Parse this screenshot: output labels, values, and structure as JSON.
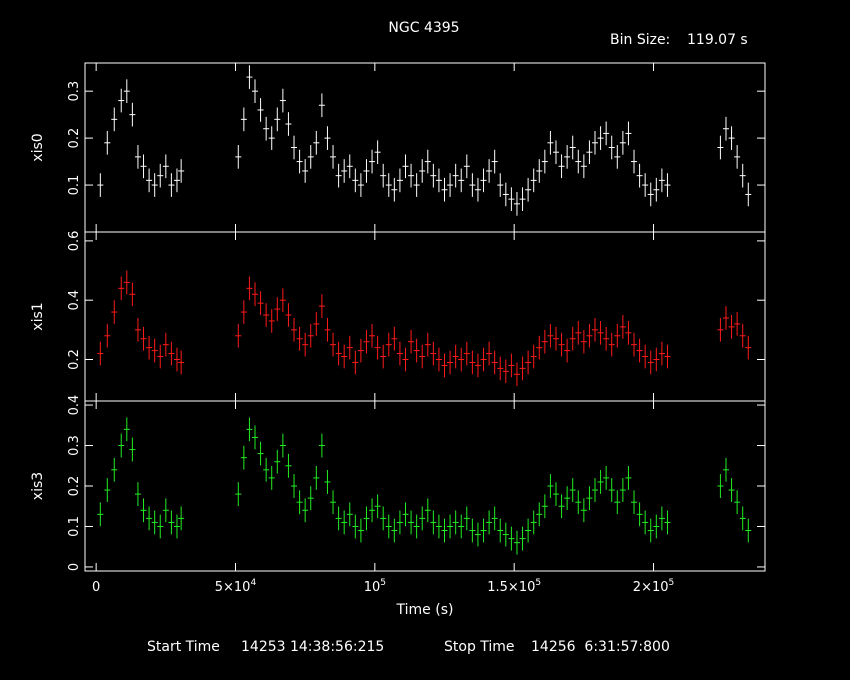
{
  "chart_data": {
    "type": "line",
    "title": "NGC 4395",
    "bin_size_label": "Bin Size:",
    "bin_size_value": "119.07 s",
    "xlabel": "Time (s)",
    "x_range": [
      -4000,
      240000
    ],
    "x_ticks": [
      {
        "value": 0,
        "label": "0"
      },
      {
        "value": 50000,
        "label": "5×10",
        "exp": "4"
      },
      {
        "value": 100000,
        "label": "10",
        "exp": "5"
      },
      {
        "value": 150000,
        "label": "1.5×10",
        "exp": "5"
      },
      {
        "value": 200000,
        "label": "2×10",
        "exp": "5"
      }
    ],
    "start_time_label": "Start Time",
    "start_time_value": "14253 14:38:56:215",
    "stop_time_label": "Stop Time",
    "stop_time_value": "14256  6:31:57:800",
    "panels": [
      {
        "name": "xis0",
        "color": "#ffffff",
        "ylim": [
          0.0,
          0.36
        ],
        "ytick_values": [
          0.1,
          0.2,
          0.3
        ],
        "ytick_labels": [
          "0.1",
          "0.2",
          "0.3"
        ],
        "segments": [
          {
            "x": [
              1500,
              4000,
              6500,
              9000,
              11000,
              13000,
              15000,
              17000,
              19000,
              21000,
              23000,
              25000,
              27000,
              29000,
              30500
            ],
            "y": [
              0.1,
              0.19,
              0.24,
              0.28,
              0.3,
              0.25,
              0.16,
              0.14,
              0.11,
              0.1,
              0.12,
              0.14,
              0.1,
              0.11,
              0.13
            ]
          },
          {
            "x": [
              51000,
              53000,
              55000,
              57000,
              59000,
              61000,
              63000,
              65000,
              67000,
              69000,
              71000,
              73000,
              75000,
              77000,
              79000,
              81000,
              83000,
              85000,
              87000,
              89000,
              91000,
              93000,
              95000,
              97000,
              99000,
              101000,
              103000,
              105000,
              107000,
              109000,
              111000,
              113000,
              115000,
              117000,
              119000,
              121000,
              123000,
              125000,
              127000,
              129000,
              131000,
              133000,
              135000,
              137000,
              139000,
              141000,
              143000,
              145000,
              147000,
              149000,
              151000,
              153000,
              155000,
              157000,
              159000,
              161000,
              163000,
              165000,
              167000,
              169000,
              171000,
              173000,
              175000,
              177000,
              179000,
              181000,
              183000,
              185000,
              187000,
              189000,
              191000,
              193000,
              195000,
              197000,
              199000,
              201000,
              203000,
              205000
            ],
            "y": [
              0.16,
              0.24,
              0.33,
              0.3,
              0.26,
              0.22,
              0.2,
              0.24,
              0.28,
              0.23,
              0.18,
              0.15,
              0.13,
              0.16,
              0.19,
              0.27,
              0.2,
              0.16,
              0.12,
              0.13,
              0.14,
              0.11,
              0.1,
              0.13,
              0.15,
              0.17,
              0.12,
              0.1,
              0.09,
              0.11,
              0.14,
              0.12,
              0.1,
              0.13,
              0.15,
              0.12,
              0.11,
              0.09,
              0.1,
              0.12,
              0.11,
              0.14,
              0.1,
              0.09,
              0.11,
              0.13,
              0.15,
              0.1,
              0.08,
              0.07,
              0.06,
              0.07,
              0.09,
              0.11,
              0.13,
              0.15,
              0.19,
              0.17,
              0.14,
              0.16,
              0.18,
              0.15,
              0.14,
              0.17,
              0.19,
              0.2,
              0.21,
              0.18,
              0.16,
              0.19,
              0.21,
              0.15,
              0.12,
              0.1,
              0.08,
              0.09,
              0.11,
              0.1
            ]
          },
          {
            "x": [
              224000,
              226000,
              228000,
              230000,
              232000,
              234000
            ],
            "y": [
              0.18,
              0.22,
              0.2,
              0.16,
              0.12,
              0.08
            ]
          }
        ]
      },
      {
        "name": "xis1",
        "color": "#ff1a1a",
        "ylim": [
          0.06,
          0.63
        ],
        "ytick_values": [
          0.2,
          0.4,
          0.6
        ],
        "ytick_labels": [
          "0.2",
          "0.4",
          "0.6"
        ],
        "segments": [
          {
            "x": [
              1500,
              4000,
              6500,
              9000,
              11000,
              13000,
              15000,
              17000,
              19000,
              21000,
              23000,
              25000,
              27000,
              29000,
              30500
            ],
            "y": [
              0.22,
              0.28,
              0.36,
              0.44,
              0.46,
              0.42,
              0.3,
              0.27,
              0.24,
              0.23,
              0.21,
              0.25,
              0.22,
              0.2,
              0.19
            ]
          },
          {
            "x": [
              51000,
              53000,
              55000,
              57000,
              59000,
              61000,
              63000,
              65000,
              67000,
              69000,
              71000,
              73000,
              75000,
              77000,
              79000,
              81000,
              83000,
              85000,
              87000,
              89000,
              91000,
              93000,
              95000,
              97000,
              99000,
              101000,
              103000,
              105000,
              107000,
              109000,
              111000,
              113000,
              115000,
              117000,
              119000,
              121000,
              123000,
              125000,
              127000,
              129000,
              131000,
              133000,
              135000,
              137000,
              139000,
              141000,
              143000,
              145000,
              147000,
              149000,
              151000,
              153000,
              155000,
              157000,
              159000,
              161000,
              163000,
              165000,
              167000,
              169000,
              171000,
              173000,
              175000,
              177000,
              179000,
              181000,
              183000,
              185000,
              187000,
              189000,
              191000,
              193000,
              195000,
              197000,
              199000,
              201000,
              203000,
              205000
            ],
            "y": [
              0.28,
              0.36,
              0.44,
              0.42,
              0.39,
              0.35,
              0.33,
              0.37,
              0.4,
              0.35,
              0.3,
              0.27,
              0.25,
              0.28,
              0.32,
              0.38,
              0.3,
              0.25,
              0.22,
              0.21,
              0.24,
              0.19,
              0.23,
              0.26,
              0.28,
              0.24,
              0.21,
              0.25,
              0.27,
              0.22,
              0.2,
              0.26,
              0.23,
              0.21,
              0.25,
              0.22,
              0.2,
              0.18,
              0.19,
              0.21,
              0.2,
              0.22,
              0.19,
              0.18,
              0.2,
              0.22,
              0.19,
              0.17,
              0.16,
              0.18,
              0.15,
              0.17,
              0.19,
              0.21,
              0.24,
              0.26,
              0.28,
              0.27,
              0.25,
              0.23,
              0.27,
              0.29,
              0.26,
              0.28,
              0.3,
              0.29,
              0.27,
              0.25,
              0.28,
              0.31,
              0.29,
              0.25,
              0.23,
              0.21,
              0.19,
              0.2,
              0.22,
              0.21
            ]
          },
          {
            "x": [
              224000,
              226000,
              228000,
              230000,
              232000,
              234000
            ],
            "y": [
              0.3,
              0.34,
              0.31,
              0.32,
              0.28,
              0.24
            ]
          }
        ]
      },
      {
        "name": "xis3",
        "color": "#22ee22",
        "ylim": [
          -0.01,
          0.41
        ],
        "ytick_values": [
          0,
          0.1,
          0.2,
          0.3,
          0.4
        ],
        "ytick_labels": [
          "0",
          "0.1",
          "0.2",
          "0.3",
          "0.4"
        ],
        "segments": [
          {
            "x": [
              1500,
              4000,
              6500,
              9000,
              11000,
              13000,
              15000,
              17000,
              19000,
              21000,
              23000,
              25000,
              27000,
              29000,
              30500
            ],
            "y": [
              0.13,
              0.19,
              0.24,
              0.3,
              0.34,
              0.29,
              0.18,
              0.14,
              0.12,
              0.11,
              0.1,
              0.14,
              0.11,
              0.1,
              0.12
            ]
          },
          {
            "x": [
              51000,
              53000,
              55000,
              57000,
              59000,
              61000,
              63000,
              65000,
              67000,
              69000,
              71000,
              73000,
              75000,
              77000,
              79000,
              81000,
              83000,
              85000,
              87000,
              89000,
              91000,
              93000,
              95000,
              97000,
              99000,
              101000,
              103000,
              105000,
              107000,
              109000,
              111000,
              113000,
              115000,
              117000,
              119000,
              121000,
              123000,
              125000,
              127000,
              129000,
              131000,
              133000,
              135000,
              137000,
              139000,
              141000,
              143000,
              145000,
              147000,
              149000,
              151000,
              153000,
              155000,
              157000,
              159000,
              161000,
              163000,
              165000,
              167000,
              169000,
              171000,
              173000,
              175000,
              177000,
              179000,
              181000,
              183000,
              185000,
              187000,
              189000,
              191000,
              193000,
              195000,
              197000,
              199000,
              201000,
              203000,
              205000
            ],
            "y": [
              0.18,
              0.27,
              0.34,
              0.32,
              0.28,
              0.24,
              0.22,
              0.26,
              0.3,
              0.25,
              0.2,
              0.16,
              0.14,
              0.17,
              0.22,
              0.3,
              0.21,
              0.16,
              0.12,
              0.11,
              0.13,
              0.1,
              0.09,
              0.12,
              0.14,
              0.15,
              0.12,
              0.1,
              0.09,
              0.11,
              0.13,
              0.11,
              0.1,
              0.12,
              0.14,
              0.11,
              0.1,
              0.09,
              0.1,
              0.11,
              0.1,
              0.12,
              0.09,
              0.08,
              0.09,
              0.11,
              0.12,
              0.09,
              0.08,
              0.07,
              0.06,
              0.07,
              0.09,
              0.11,
              0.13,
              0.15,
              0.2,
              0.18,
              0.15,
              0.17,
              0.19,
              0.16,
              0.14,
              0.17,
              0.19,
              0.21,
              0.22,
              0.19,
              0.16,
              0.19,
              0.22,
              0.16,
              0.13,
              0.11,
              0.09,
              0.1,
              0.12,
              0.11
            ]
          },
          {
            "x": [
              224000,
              226000,
              228000,
              230000,
              232000,
              234000
            ],
            "y": [
              0.2,
              0.24,
              0.19,
              0.16,
              0.12,
              0.09
            ]
          }
        ]
      }
    ]
  }
}
